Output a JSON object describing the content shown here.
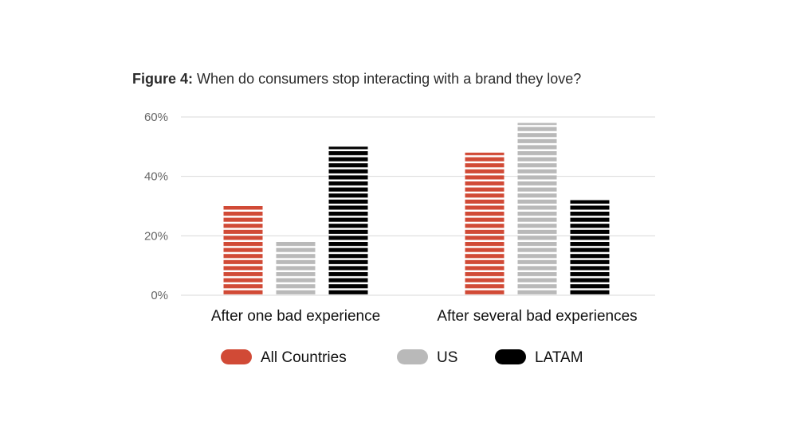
{
  "title": {
    "prefix": "Figure 4:",
    "text": "When do consumers stop interacting with a brand they love?"
  },
  "chart_data": {
    "type": "bar",
    "categories": [
      "After one bad experience",
      "After several bad experiences"
    ],
    "series": [
      {
        "name": "All Countries",
        "values": [
          30,
          48
        ],
        "color": "#d14a36"
      },
      {
        "name": "US",
        "values": [
          18,
          58
        ],
        "color": "#b9b9b9"
      },
      {
        "name": "LATAM",
        "values": [
          50,
          32
        ],
        "color": "#000000"
      }
    ],
    "ylim": [
      0,
      60
    ],
    "yticks": [
      0,
      20,
      40,
      60
    ],
    "ytick_labels": [
      "0%",
      "20%",
      "40%",
      "60%"
    ],
    "grid": true,
    "legend_position": "bottom"
  }
}
